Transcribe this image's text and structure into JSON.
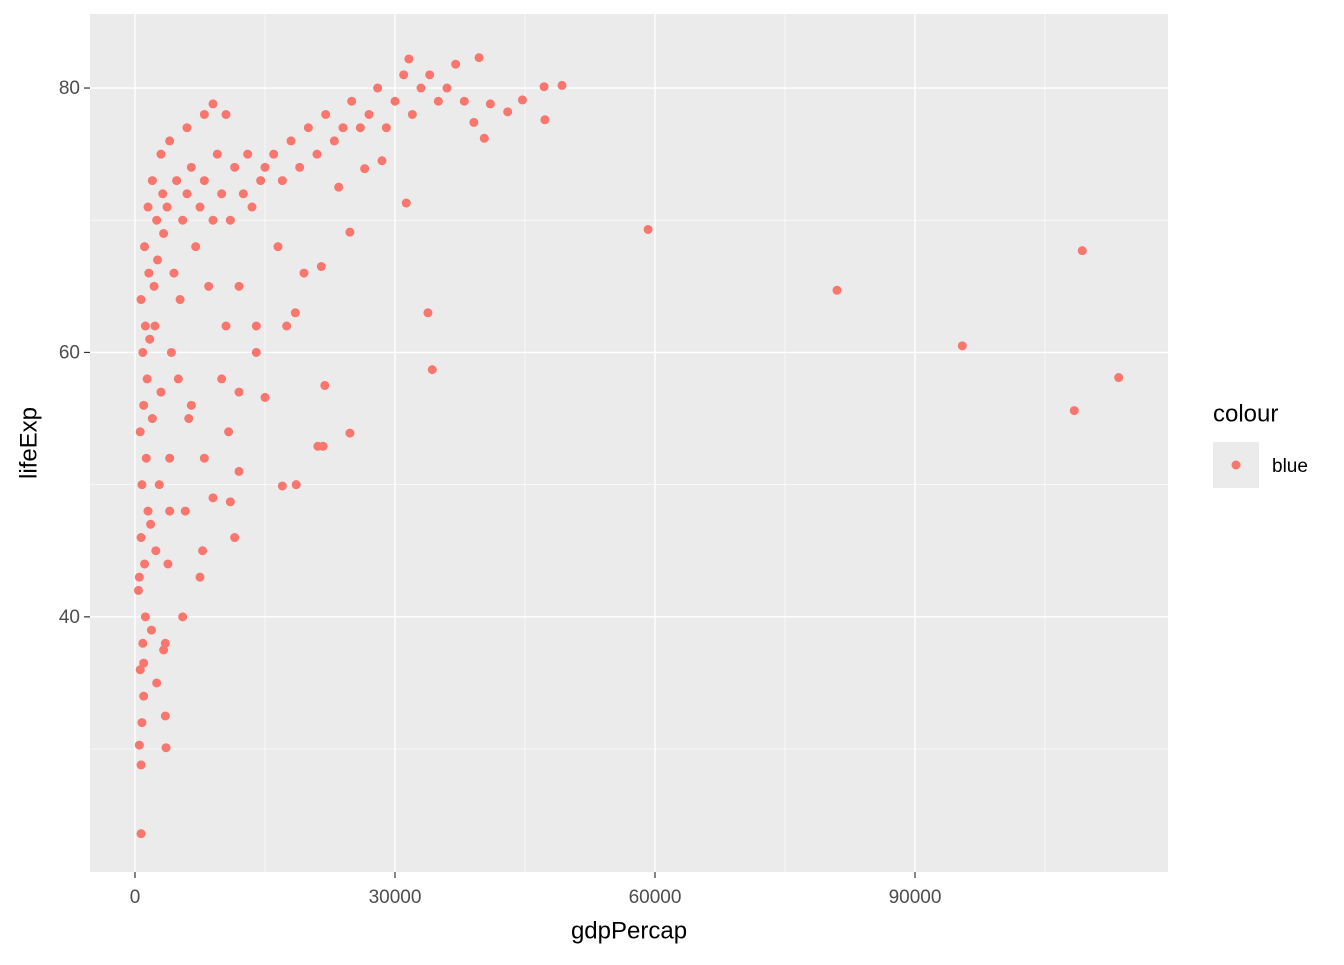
{
  "chart_data": {
    "type": "scatter",
    "x_label": "gdpPercap",
    "y_label": "lifeExp",
    "legend_title": "colour",
    "legend": "right",
    "grid": true,
    "xlim": [
      -5192,
      119192
    ],
    "xticks": [
      0,
      30000,
      60000,
      90000
    ],
    "ylim": [
      20.7,
      85.6
    ],
    "yticks": [
      40,
      60,
      80
    ],
    "series": [
      {
        "name": "blue",
        "color": "#F8766D",
        "x": [
          700,
          700,
          3580,
          3500,
          500,
          800,
          1000,
          600,
          900,
          1200,
          400,
          1100,
          700,
          1500,
          800,
          1300,
          600,
          1000,
          1400,
          900,
          1200,
          700,
          1600,
          1100,
          500,
          1800,
          2000,
          1700,
          2200,
          2500,
          1900,
          2400,
          2800,
          3000,
          2300,
          2600,
          3200,
          3500,
          3800,
          4000,
          4200,
          4500,
          3300,
          3700,
          4800,
          5000,
          5200,
          5500,
          6000,
          6500,
          5800,
          6200,
          7000,
          7500,
          8000,
          8500,
          9000,
          9500,
          10000,
          10500,
          11000,
          11500,
          12000,
          12500,
          13000,
          13500,
          14000,
          14500,
          15000,
          16000,
          17000,
          18000,
          19000,
          20000,
          21000,
          22000,
          23000,
          24000,
          25000,
          26000,
          27000,
          28000,
          29000,
          30000,
          31000,
          32000,
          33000,
          34000,
          35000,
          36000,
          37000,
          38000,
          3000,
          4000,
          6000,
          8000,
          9000,
          10500,
          2000,
          1500,
          2500,
          3300,
          1000,
          5500,
          7500,
          7800,
          11500,
          9000,
          12000,
          11000,
          8000,
          10800,
          4000,
          6500,
          10000,
          12000,
          14000,
          16500,
          18500,
          19500,
          21500,
          17500,
          109300,
          81000,
          95460,
          113500,
          108380,
          59200,
          49270,
          47200,
          47300,
          39700,
          31600,
          40300,
          39100,
          31300,
          33800,
          34300,
          24800,
          24800,
          21900,
          21100,
          21700,
          18600,
          17000,
          15000,
          44700,
          43000,
          41000,
          28500,
          26500,
          23500
        ],
        "y": [
          23.6,
          28.8,
          30.1,
          32.5,
          30.3,
          32,
          34,
          36,
          38,
          40,
          42,
          44,
          46,
          48,
          50,
          52,
          54,
          56,
          58,
          60,
          62,
          64,
          66,
          68,
          43,
          47,
          55,
          61,
          65,
          70,
          39,
          45,
          50,
          57,
          62,
          67,
          72,
          38,
          44,
          52,
          60,
          66,
          69,
          71,
          73,
          58,
          64,
          70,
          72,
          74,
          48,
          55,
          68,
          71,
          73,
          65,
          70,
          75,
          72,
          62,
          70,
          74,
          57,
          72,
          75,
          71,
          60,
          73,
          74,
          75,
          73,
          76,
          74,
          77,
          75,
          78,
          76,
          77,
          79,
          77,
          78,
          80,
          77,
          79,
          81,
          78,
          80,
          81,
          79,
          80,
          81.8,
          79,
          75,
          76,
          77,
          78,
          78.8,
          78,
          73,
          71,
          35,
          37.5,
          36.5,
          40,
          43,
          45,
          46,
          49,
          51,
          48.7,
          52,
          54,
          48,
          56,
          58,
          65,
          62,
          68,
          63,
          66,
          66.5,
          62,
          67.7,
          64.7,
          60.5,
          58.1,
          55.6,
          69.3,
          80.2,
          80.1,
          77.6,
          82.3,
          82.2,
          76.2,
          77.4,
          71.3,
          63,
          58.7,
          69.1,
          53.9,
          57.5,
          52.9,
          52.9,
          50,
          49.9,
          56.6,
          79.1,
          78.2,
          78.8,
          74.5,
          73.9,
          72.5
        ]
      }
    ]
  }
}
